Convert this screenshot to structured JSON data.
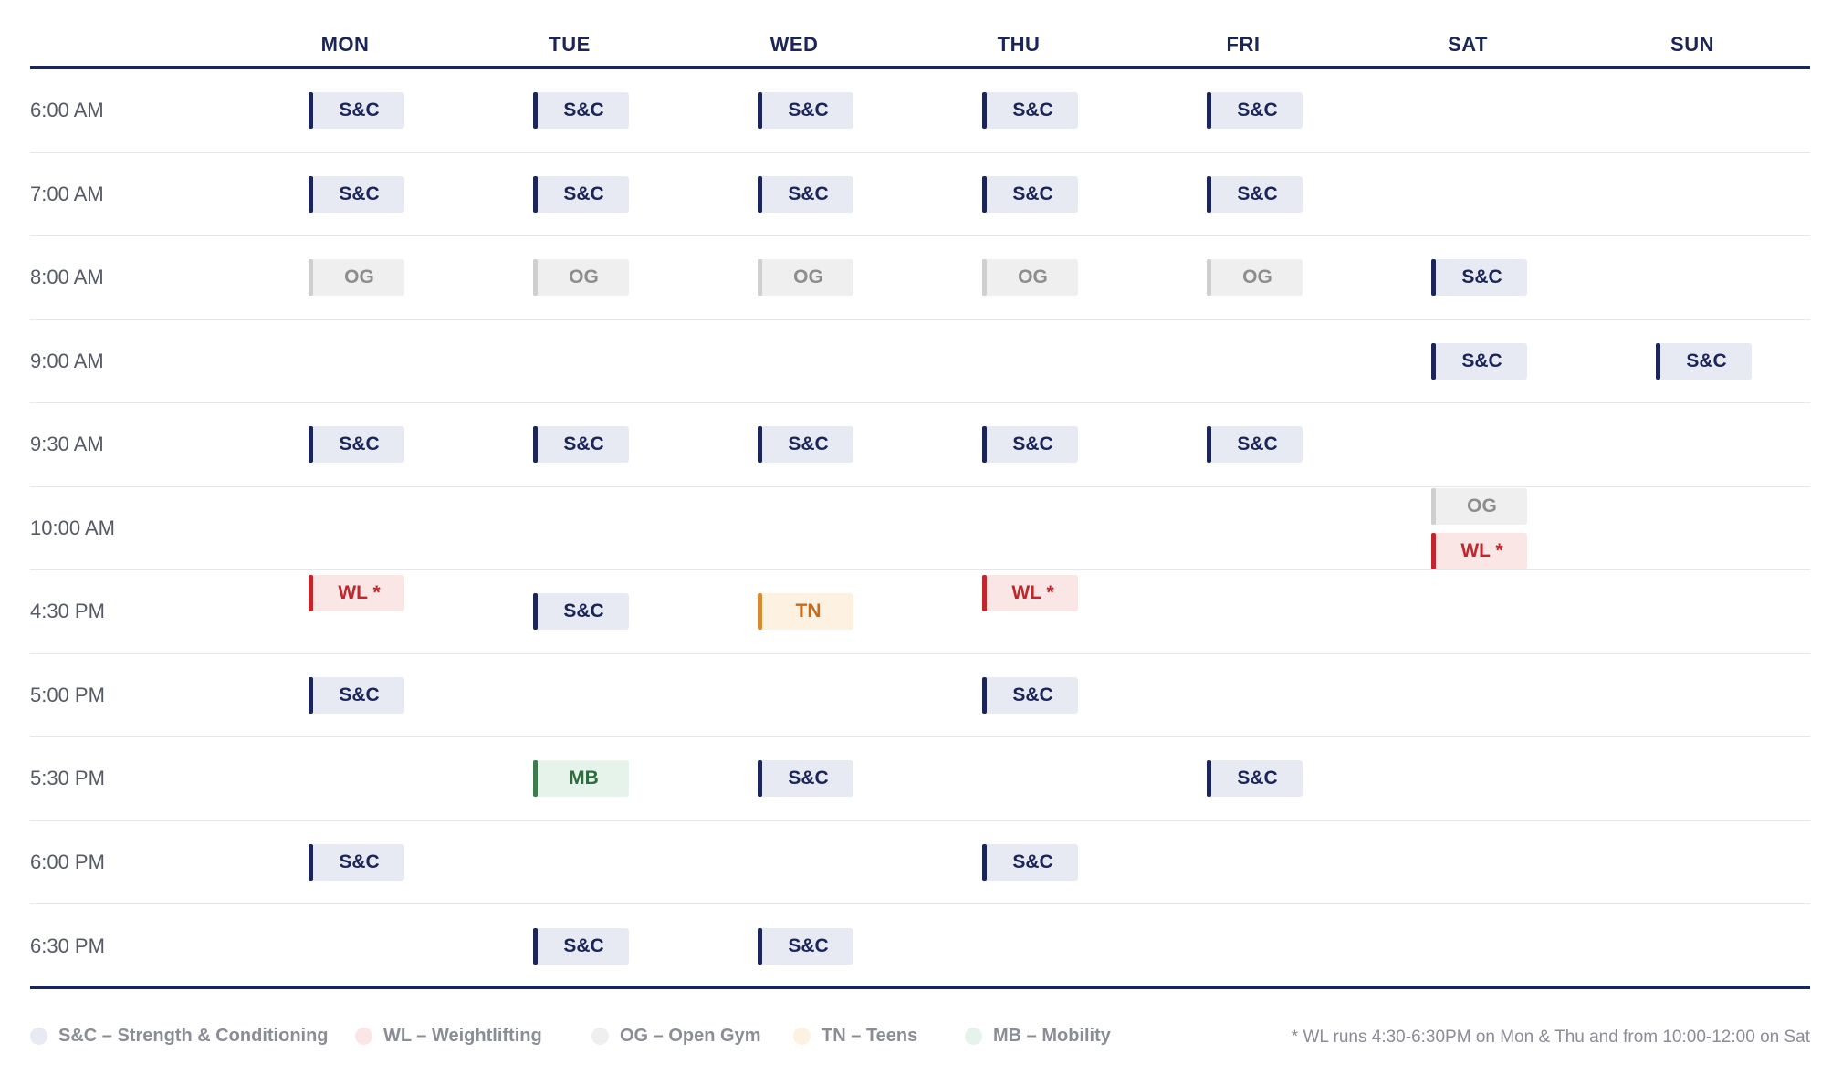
{
  "days": [
    "MON",
    "TUE",
    "WED",
    "THU",
    "FRI",
    "SAT",
    "SUN"
  ],
  "rows": [
    {
      "time": "6:00 AM",
      "cells": [
        [
          "S&C"
        ],
        [
          "S&C"
        ],
        [
          "S&C"
        ],
        [
          "S&C"
        ],
        [
          "S&C"
        ],
        [],
        []
      ]
    },
    {
      "time": "7:00 AM",
      "cells": [
        [
          "S&C"
        ],
        [
          "S&C"
        ],
        [
          "S&C"
        ],
        [
          "S&C"
        ],
        [
          "S&C"
        ],
        [],
        []
      ]
    },
    {
      "time": "8:00 AM",
      "cells": [
        [
          "OG"
        ],
        [
          "OG"
        ],
        [
          "OG"
        ],
        [
          "OG"
        ],
        [
          "OG"
        ],
        [
          "S&C"
        ],
        []
      ]
    },
    {
      "time": "9:00 AM",
      "cells": [
        [],
        [],
        [],
        [],
        [],
        [
          "S&C"
        ],
        [
          "S&C"
        ]
      ]
    },
    {
      "time": "9:30 AM",
      "cells": [
        [
          "S&C"
        ],
        [
          "S&C"
        ],
        [
          "S&C"
        ],
        [
          "S&C"
        ],
        [
          "S&C"
        ],
        [],
        []
      ]
    },
    {
      "time": "10:00 AM",
      "cells": [
        [],
        [],
        [],
        [],
        [],
        [
          "OG",
          "WL *"
        ],
        []
      ]
    },
    {
      "time": "4:30 PM",
      "cells": [
        [
          "WL *"
        ],
        [
          "S&C"
        ],
        [
          "TN"
        ],
        [
          "WL *"
        ],
        [],
        [],
        []
      ]
    },
    {
      "time": "5:00 PM",
      "cells": [
        [
          "S&C"
        ],
        [],
        [],
        [
          "S&C"
        ],
        [],
        [],
        []
      ]
    },
    {
      "time": "5:30 PM",
      "cells": [
        [],
        [
          "MB"
        ],
        [
          "S&C"
        ],
        [],
        [
          "S&C"
        ],
        [],
        []
      ]
    },
    {
      "time": "6:00 PM",
      "cells": [
        [
          "S&C"
        ],
        [],
        [],
        [
          "S&C"
        ],
        [],
        [],
        []
      ]
    },
    {
      "time": "6:30 PM",
      "cells": [
        [],
        [
          "S&C"
        ],
        [
          "S&C"
        ],
        [],
        [],
        [],
        []
      ]
    }
  ],
  "legend": [
    {
      "label": "S&C – Strength & Conditioning",
      "color": "#e7eaf3"
    },
    {
      "label": "WL – Weightlifting",
      "color": "#fbe6e6"
    },
    {
      "label": "OG – Open Gym",
      "color": "#efefef"
    },
    {
      "label": "TN – Teens",
      "color": "#fdf1e2"
    },
    {
      "label": "MB – Mobility",
      "color": "#e6f3ea"
    }
  ],
  "note": "* WL runs 4:30-6:30PM on Mon & Thu and from 10:00-12:00 on Sat",
  "colors": {
    "navy": "#1b2559",
    "weightlifting": "#c0262c",
    "teens": "#c46b1d",
    "mobility": "#2f6b3e",
    "open_gym": "#8d8d8d"
  }
}
